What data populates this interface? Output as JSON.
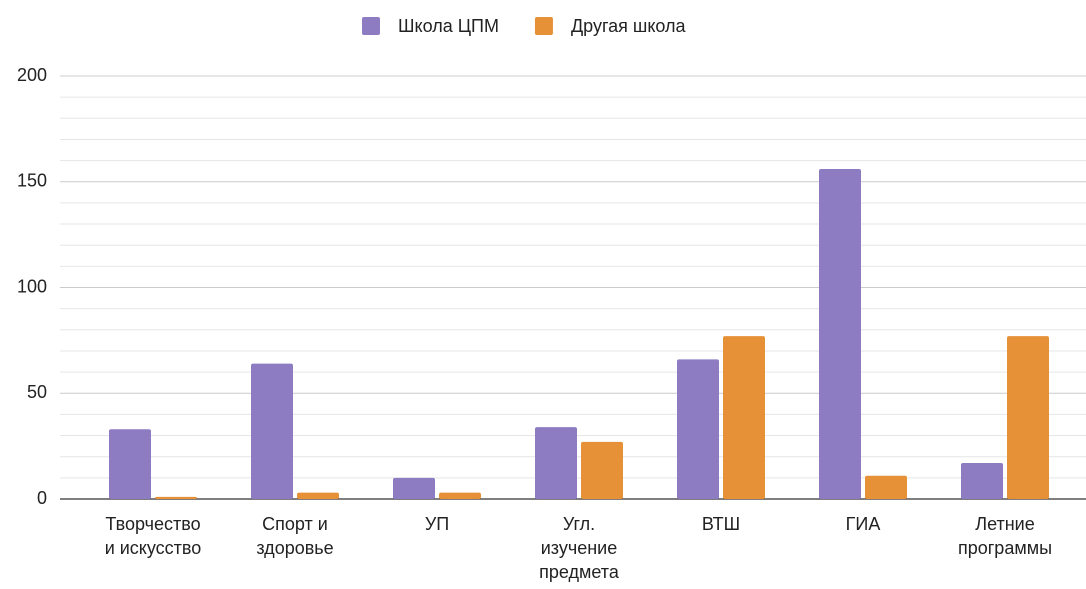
{
  "chart_data": {
    "type": "bar",
    "categories": [
      "Творчество и искусство",
      "Спорт и здоровье",
      "УП",
      "Угл. изучение предмета",
      "ВТШ",
      "ГИА",
      "Летние программы"
    ],
    "series": [
      {
        "name": "Школа ЦПМ",
        "color": "#8e7cc3",
        "values": [
          33,
          64,
          10,
          34,
          66,
          156,
          17
        ]
      },
      {
        "name": "Другая школа",
        "color": "#e69138",
        "values": [
          1,
          3,
          3,
          27,
          77,
          11,
          77
        ]
      }
    ],
    "ylim": [
      0,
      200
    ],
    "yticks": [
      0,
      50,
      100,
      150,
      200
    ],
    "yminorticks": [
      10,
      20,
      30,
      40,
      60,
      70,
      80,
      90,
      110,
      120,
      130,
      140,
      160,
      170,
      180,
      190
    ],
    "grid": true,
    "legend": "top"
  }
}
